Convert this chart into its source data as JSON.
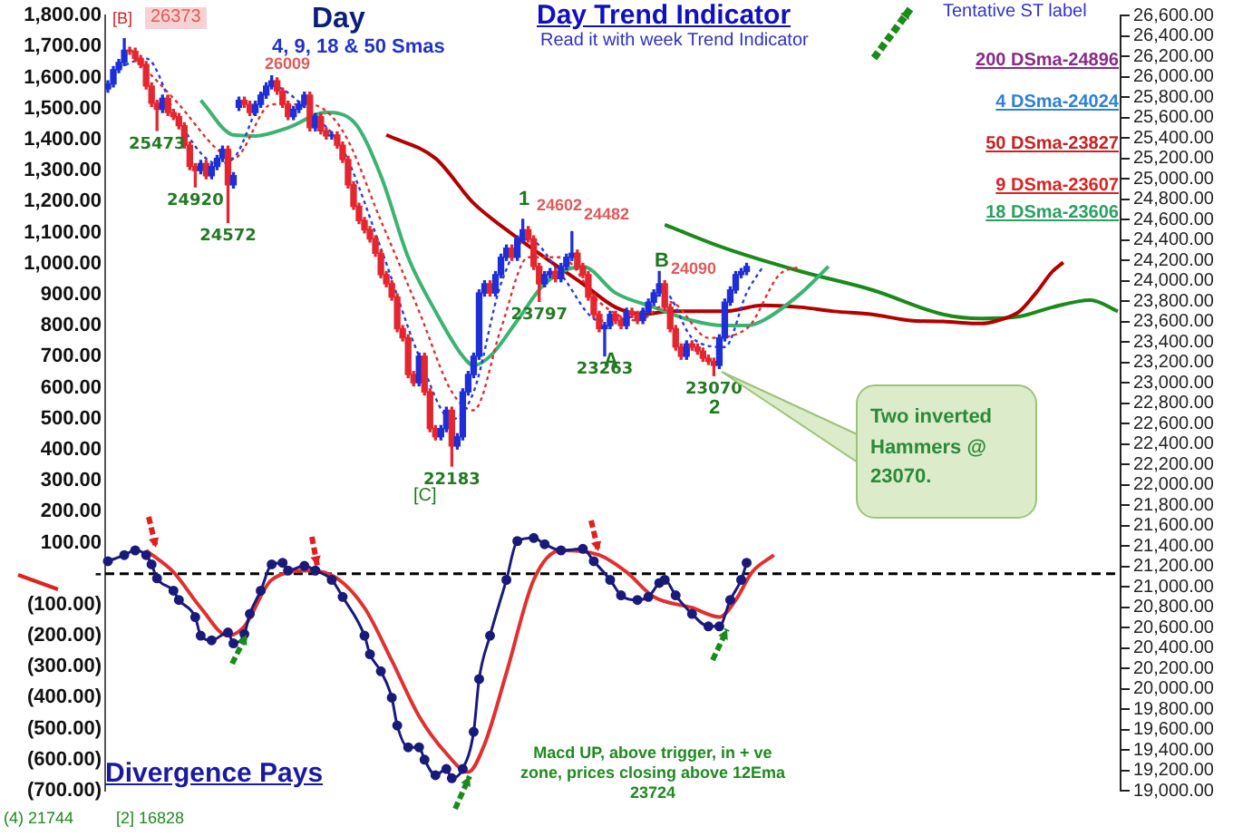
{
  "chart_data": {
    "type": "candlestick",
    "title": "Day Trend Indicator",
    "subtitle": "Read it with week Trend Indicator",
    "categories": [
      null,
      null,
      null,
      null,
      null,
      null,
      null,
      null,
      null,
      null,
      null,
      null,
      null,
      null,
      null,
      null,
      null,
      null,
      null,
      null,
      null,
      null,
      null,
      null,
      null,
      null,
      null,
      null,
      null,
      null,
      null,
      null,
      null,
      null,
      null,
      null,
      null,
      null,
      null,
      null,
      null,
      null,
      null,
      null,
      null,
      null,
      null,
      null,
      null,
      null,
      null,
      null,
      null,
      null,
      null,
      null,
      null,
      null,
      null,
      null,
      null,
      null,
      null,
      null,
      null,
      null,
      null,
      null,
      null,
      null,
      null,
      null,
      null,
      null,
      null,
      null,
      null,
      null,
      null,
      null,
      null,
      null,
      null,
      null,
      null,
      null,
      null,
      null,
      null,
      null,
      null,
      null,
      null,
      null,
      null,
      null,
      null,
      null,
      null,
      null,
      null,
      null,
      null,
      null,
      null,
      null,
      null,
      null,
      null,
      null,
      null,
      null,
      null,
      null,
      null,
      null,
      null,
      null,
      null,
      null,
      null,
      null,
      null,
      null,
      null,
      null,
      null,
      null,
      null,
      null,
      null,
      null,
      null,
      null,
      null,
      null,
      null,
      null,
      null,
      null,
      null,
      null,
      null,
      null,
      null,
      null,
      null,
      null,
      null,
      null,
      null,
      null,
      null,
      null,
      null,
      null,
      null,
      null,
      null,
      null,
      null,
      null,
      null,
      null,
      null,
      null,
      null,
      null,
      null,
      null,
      null,
      null,
      null,
      null,
      null,
      null,
      null,
      null,
      null,
      null,
      null,
      null,
      null,
      null,
      null,
      null
    ],
    "ohlc": [
      [
        25880,
        25960,
        25850,
        25930
      ],
      [
        25930,
        26100,
        25900,
        26070
      ],
      [
        26070,
        26170,
        26040,
        26140
      ],
      [
        26140,
        26373,
        26110,
        26260
      ],
      [
        26260,
        26290,
        26220,
        26250
      ],
      [
        26250,
        26280,
        26150,
        26180
      ],
      [
        26180,
        26210,
        26090,
        26120
      ],
      [
        26120,
        26150,
        25880,
        25910
      ],
      [
        25910,
        25940,
        25710,
        25740
      ],
      [
        25740,
        25770,
        25473,
        25680
      ],
      [
        25680,
        25820,
        25650,
        25790
      ],
      [
        25790,
        25820,
        25620,
        25650
      ],
      [
        25650,
        25680,
        25580,
        25610
      ],
      [
        25610,
        25640,
        25490,
        25520
      ],
      [
        25520,
        25550,
        25300,
        25330
      ],
      [
        25330,
        25360,
        25090,
        25120
      ],
      [
        25120,
        25150,
        24920,
        25080
      ],
      [
        25080,
        25180,
        25050,
        25150
      ],
      [
        25150,
        25180,
        25000,
        25030
      ],
      [
        25030,
        25150,
        25000,
        25120
      ],
      [
        25120,
        25230,
        25090,
        25200
      ],
      [
        25200,
        25320,
        25170,
        25290
      ],
      [
        25290,
        25320,
        24572,
        24940
      ],
      [
        24940,
        25060,
        24910,
        25030
      ],
      [
        25700,
        25800,
        25670,
        25770
      ],
      [
        25770,
        25800,
        25700,
        25730
      ],
      [
        25730,
        25760,
        25620,
        25650
      ],
      [
        25650,
        25760,
        25620,
        25730
      ],
      [
        25730,
        25850,
        25700,
        25820
      ],
      [
        25820,
        25940,
        25790,
        25910
      ],
      [
        25910,
        26009,
        25880,
        25960
      ],
      [
        25960,
        25990,
        25830,
        25860
      ],
      [
        25860,
        25890,
        25700,
        25730
      ],
      [
        25730,
        25760,
        25580,
        25610
      ],
      [
        25610,
        25710,
        25580,
        25680
      ],
      [
        25680,
        25760,
        25650,
        25730
      ],
      [
        25730,
        25850,
        25700,
        25820
      ],
      [
        25820,
        25850,
        25470,
        25500
      ],
      [
        25500,
        25640,
        25470,
        25610
      ],
      [
        25610,
        25640,
        25440,
        25470
      ],
      [
        25470,
        25500,
        25390,
        25420
      ],
      [
        25420,
        25460,
        25390,
        25430
      ],
      [
        25430,
        25460,
        25300,
        25330
      ],
      [
        25330,
        25360,
        25160,
        25190
      ],
      [
        25190,
        25220,
        24910,
        24940
      ],
      [
        24940,
        24970,
        24700,
        24730
      ],
      [
        24730,
        24760,
        24560,
        24590
      ],
      [
        24590,
        24620,
        24470,
        24500
      ],
      [
        24500,
        24530,
        24380,
        24410
      ],
      [
        24410,
        24440,
        24240,
        24270
      ],
      [
        24270,
        24300,
        24030,
        24060
      ],
      [
        24060,
        24090,
        23940,
        23970
      ],
      [
        23970,
        24000,
        23810,
        23840
      ],
      [
        23840,
        23870,
        23500,
        23530
      ],
      [
        23530,
        23560,
        23410,
        23440
      ],
      [
        23440,
        23470,
        23050,
        23080
      ],
      [
        23080,
        23110,
        22970,
        23000
      ],
      [
        23000,
        23290,
        22970,
        23260
      ],
      [
        23260,
        23290,
        22880,
        22910
      ],
      [
        22910,
        22940,
        22520,
        22550
      ],
      [
        22550,
        22580,
        22440,
        22470
      ],
      [
        22470,
        22580,
        22440,
        22550
      ],
      [
        22550,
        22760,
        22520,
        22730
      ],
      [
        22730,
        22760,
        22183,
        22380
      ],
      [
        22380,
        22500,
        22350,
        22470
      ],
      [
        22470,
        22940,
        22440,
        22910
      ],
      [
        22910,
        23110,
        22880,
        23080
      ],
      [
        23080,
        23290,
        23050,
        23260
      ],
      [
        23260,
        23910,
        23230,
        23880
      ],
      [
        23880,
        24000,
        23850,
        23970
      ],
      [
        23970,
        24000,
        23850,
        23880
      ],
      [
        23880,
        24090,
        23850,
        24060
      ],
      [
        24060,
        24260,
        24030,
        24230
      ],
      [
        24230,
        24350,
        24200,
        24320
      ],
      [
        24320,
        24350,
        24200,
        24230
      ],
      [
        24230,
        24440,
        24200,
        24410
      ],
      [
        24410,
        24602,
        24380,
        24500
      ],
      [
        24500,
        24530,
        24380,
        24410
      ],
      [
        24410,
        24440,
        24110,
        24140
      ],
      [
        24140,
        24170,
        23797,
        23970
      ],
      [
        23970,
        24090,
        23940,
        24060
      ],
      [
        24060,
        24120,
        24030,
        24090
      ],
      [
        24090,
        24120,
        23990,
        24020
      ],
      [
        24020,
        24170,
        23990,
        24140
      ],
      [
        24140,
        24260,
        24110,
        24230
      ],
      [
        24230,
        24482,
        24200,
        24270
      ],
      [
        24270,
        24300,
        24110,
        24140
      ],
      [
        24140,
        24170,
        24030,
        24060
      ],
      [
        24060,
        24090,
        23810,
        23840
      ],
      [
        23840,
        23870,
        23640,
        23670
      ],
      [
        23670,
        23700,
        23500,
        23530
      ],
      [
        23530,
        23590,
        23263,
        23560
      ],
      [
        23560,
        23700,
        23530,
        23670
      ],
      [
        23670,
        23700,
        23580,
        23610
      ],
      [
        23610,
        23640,
        23530,
        23560
      ],
      [
        23560,
        23730,
        23530,
        23700
      ],
      [
        23700,
        23730,
        23640,
        23670
      ],
      [
        23670,
        23700,
        23580,
        23610
      ],
      [
        23610,
        23730,
        23580,
        23700
      ],
      [
        23700,
        23820,
        23670,
        23790
      ],
      [
        23790,
        23910,
        23760,
        23880
      ],
      [
        23880,
        24090,
        23850,
        23970
      ],
      [
        23970,
        24000,
        23710,
        23740
      ],
      [
        23740,
        23770,
        23500,
        23530
      ],
      [
        23530,
        23560,
        23320,
        23350
      ],
      [
        23350,
        23380,
        23230,
        23260
      ],
      [
        23260,
        23410,
        23230,
        23380
      ],
      [
        23380,
        23410,
        23320,
        23350
      ],
      [
        23350,
        23380,
        23280,
        23310
      ],
      [
        23310,
        23340,
        23210,
        23240
      ],
      [
        23240,
        23270,
        23180,
        23210
      ],
      [
        23210,
        23240,
        23070,
        23170
      ],
      [
        23170,
        23470,
        23140,
        23440
      ],
      [
        23440,
        23820,
        23410,
        23790
      ],
      [
        23790,
        23940,
        23760,
        23910
      ],
      [
        23910,
        24090,
        23880,
        24060
      ],
      [
        24060,
        24120,
        24030,
        24090
      ],
      [
        24090,
        24170,
        24060,
        24140
      ],
      null,
      null,
      null,
      null,
      null,
      null,
      null,
      null,
      null,
      null,
      null,
      null,
      null,
      null,
      null,
      null,
      null,
      null,
      null,
      null,
      null,
      null,
      null,
      null,
      null,
      null,
      null,
      null,
      null,
      null,
      null,
      null,
      null,
      null,
      null,
      null,
      null,
      null,
      null,
      null,
      null,
      null,
      null,
      null,
      null,
      null,
      null,
      null,
      null,
      null,
      null,
      null,
      null,
      null,
      null,
      null,
      null,
      null,
      null,
      null,
      null,
      null,
      null,
      null,
      null,
      null,
      null,
      null
    ],
    "series": [
      {
        "type": "line",
        "color": "#2a3fd8",
        "line_style": "dotted",
        "values": [
          null,
          null,
          26090,
          null,
          null,
          null,
          null,
          26180,
          null,
          null,
          null,
          null,
          null,
          25560,
          null,
          null,
          null,
          null,
          null,
          null,
          25150,
          null,
          null,
          25200,
          null,
          null,
          null,
          null,
          null,
          null,
          25910,
          null,
          null,
          null,
          null,
          null,
          null,
          25650,
          null,
          null,
          null,
          null,
          null,
          25290,
          null,
          null,
          null,
          null,
          null,
          null,
          24320,
          null,
          null,
          null,
          null,
          null,
          null,
          23260,
          null,
          null,
          null,
          null,
          null,
          22640,
          null,
          null,
          null,
          22910,
          null,
          null,
          null,
          null,
          23970,
          null,
          null,
          null,
          null,
          24410,
          null,
          null,
          null,
          null,
          null,
          24060,
          null,
          null,
          null,
          null,
          null,
          null,
          23610,
          null,
          null,
          null,
          null,
          null,
          null,
          23670,
          null,
          null,
          null,
          null,
          23880,
          null,
          null,
          null,
          null,
          23440,
          null,
          null,
          null,
          null,
          null,
          23350,
          null,
          null,
          null,
          23880,
          null,
          null,
          24140,
          null,
          null,
          null,
          null,
          null,
          null,
          null,
          null,
          null,
          null,
          null,
          null,
          null,
          null,
          null,
          null,
          null,
          null,
          null,
          null,
          null,
          null,
          null,
          null,
          null,
          null,
          null,
          null,
          null,
          null,
          null,
          null,
          null,
          null,
          null,
          null,
          null,
          null,
          null,
          null,
          null,
          null,
          null,
          null,
          null,
          null,
          null,
          null,
          null,
          null,
          null,
          null,
          null,
          null,
          null,
          null,
          null,
          null,
          null,
          null,
          null,
          null,
          null,
          null,
          null
        ]
      },
      {
        "type": "line",
        "color": "#e03030",
        "line_style": "dotted",
        "values": [
          null,
          null,
          null,
          null,
          null,
          26180,
          null,
          null,
          null,
          null,
          null,
          null,
          null,
          25730,
          null,
          null,
          null,
          null,
          null,
          null,
          25290,
          null,
          null,
          25200,
          null,
          null,
          null,
          null,
          null,
          null,
          25730,
          null,
          null,
          null,
          null,
          null,
          null,
          25730,
          null,
          null,
          null,
          null,
          null,
          25470,
          null,
          null,
          null,
          null,
          null,
          null,
          24590,
          null,
          null,
          null,
          null,
          null,
          null,
          23700,
          null,
          null,
          null,
          null,
          null,
          22910,
          null,
          null,
          null,
          22730,
          null,
          null,
          null,
          null,
          23530,
          null,
          null,
          null,
          null,
          24230,
          null,
          null,
          null,
          null,
          null,
          24230,
          null,
          null,
          null,
          null,
          null,
          null,
          23790,
          null,
          null,
          null,
          null,
          null,
          null,
          23610,
          null,
          null,
          null,
          null,
          null,
          23790,
          null,
          null,
          null,
          null,
          null,
          null,
          23440,
          null,
          null,
          null,
          null,
          null,
          null,
          23530,
          null,
          null,
          null,
          null,
          null,
          24060,
          null,
          null,
          null,
          24140,
          null,
          null,
          null,
          null,
          null,
          null,
          null,
          null,
          null,
          null,
          null,
          null,
          null,
          null,
          null,
          null,
          null,
          null,
          null,
          null,
          null,
          null,
          null,
          null,
          null,
          null,
          null,
          null,
          null,
          null,
          null,
          null,
          null,
          null,
          null,
          null,
          null,
          null,
          null,
          null,
          null,
          null,
          null,
          null,
          null,
          null,
          null,
          null,
          null,
          null,
          null,
          null,
          null,
          null,
          null,
          null,
          null,
          null
        ]
      },
      {
        "type": "line",
        "color": "#3cb371",
        "line_style": "solid",
        "values": [
          null,
          null,
          null,
          null,
          null,
          null,
          null,
          null,
          null,
          null,
          null,
          null,
          null,
          null,
          null,
          null,
          null,
          25770,
          null,
          null,
          null,
          null,
          null,
          25430,
          null,
          null,
          null,
          25420,
          null,
          null,
          null,
          null,
          null,
          25500,
          null,
          null,
          null,
          null,
          null,
          null,
          25650,
          null,
          null,
          null,
          null,
          25560,
          null,
          null,
          null,
          null,
          25030,
          null,
          null,
          null,
          null,
          24230,
          null,
          null,
          null,
          null,
          23700,
          null,
          null,
          null,
          null,
          23260,
          null,
          23170,
          null,
          null,
          23260,
          null,
          null,
          null,
          null,
          23610,
          null,
          null,
          null,
          null,
          23970,
          null,
          null,
          null,
          null,
          null,
          null,
          24140,
          null,
          null,
          null,
          null,
          null,
          23880,
          null,
          null,
          null,
          null,
          null,
          null,
          23740,
          null,
          null,
          null,
          null,
          null,
          null,
          23610,
          null,
          null,
          null,
          null,
          null,
          23560,
          null,
          null,
          null,
          23560,
          null,
          null,
          23610,
          null,
          null,
          null,
          null,
          null,
          null,
          23880,
          null,
          null,
          null,
          null,
          24140,
          null,
          null,
          null,
          null,
          null,
          null,
          null,
          null,
          null,
          null,
          null,
          null,
          null,
          null,
          null,
          null,
          null,
          null,
          null,
          null,
          null,
          null,
          null,
          null,
          null,
          null,
          null,
          null,
          null,
          null,
          null,
          null,
          null,
          null,
          null,
          null,
          null,
          null,
          null,
          null,
          null,
          null,
          null,
          null,
          null,
          null,
          null,
          null,
          null,
          null,
          null,
          null,
          null
        ]
      },
      {
        "type": "line",
        "color": "#b40000",
        "line_style": "solid",
        "values": [
          null,
          null,
          null,
          null,
          null,
          null,
          null,
          null,
          null,
          null,
          null,
          null,
          null,
          null,
          null,
          null,
          null,
          null,
          null,
          null,
          null,
          null,
          null,
          null,
          null,
          null,
          null,
          null,
          null,
          null,
          null,
          null,
          null,
          null,
          null,
          null,
          null,
          null,
          null,
          null,
          null,
          null,
          null,
          null,
          null,
          null,
          null,
          null,
          null,
          null,
          null,
          25430,
          null,
          null,
          null,
          null,
          null,
          null,
          null,
          null,
          25200,
          null,
          null,
          null,
          null,
          null,
          null,
          24760,
          null,
          null,
          null,
          null,
          null,
          24500,
          null,
          null,
          null,
          null,
          null,
          null,
          24230,
          null,
          null,
          null,
          null,
          null,
          null,
          23970,
          null,
          null,
          null,
          null,
          null,
          23740,
          null,
          null,
          null,
          null,
          23670,
          null,
          null,
          null,
          null,
          23700,
          null,
          null,
          null,
          null,
          null,
          null,
          null,
          null,
          null,
          23700,
          null,
          null,
          null,
          null,
          null,
          null,
          23760,
          null,
          null,
          null,
          null,
          null,
          null,
          23740,
          null,
          null,
          null,
          null,
          null,
          23700,
          null,
          null,
          null,
          null,
          null,
          null,
          23670,
          null,
          null,
          null,
          null,
          null,
          null,
          23610,
          null,
          null,
          null,
          null,
          null,
          23600,
          null,
          null,
          null,
          null,
          null,
          null,
          23580,
          null,
          null,
          23610,
          null,
          null,
          null,
          23700,
          null,
          null,
          23880,
          null,
          null,
          24090,
          null,
          24180,
          null,
          null,
          null,
          null,
          null,
          null,
          null,
          null,
          null,
          null
        ]
      },
      {
        "type": "line",
        "color": "#1a8a1a",
        "line_style": "solid",
        "values": [
          null,
          null,
          null,
          null,
          null,
          null,
          null,
          null,
          null,
          null,
          null,
          null,
          null,
          null,
          null,
          null,
          null,
          null,
          null,
          null,
          null,
          null,
          null,
          null,
          null,
          null,
          null,
          null,
          null,
          null,
          null,
          null,
          null,
          null,
          null,
          null,
          null,
          null,
          null,
          null,
          null,
          null,
          null,
          null,
          null,
          null,
          null,
          null,
          null,
          null,
          null,
          null,
          null,
          null,
          null,
          null,
          null,
          null,
          null,
          null,
          null,
          null,
          null,
          null,
          null,
          null,
          null,
          null,
          null,
          null,
          null,
          null,
          null,
          null,
          null,
          null,
          null,
          null,
          null,
          null,
          null,
          null,
          null,
          null,
          null,
          null,
          null,
          null,
          null,
          null,
          null,
          null,
          null,
          null,
          null,
          null,
          null,
          null,
          null,
          null,
          null,
          null,
          24550,
          null,
          null,
          null,
          null,
          null,
          null,
          null,
          null,
          null,
          null,
          24320,
          null,
          null,
          null,
          null,
          null,
          null,
          null,
          null,
          null,
          null,
          null,
          null,
          null,
          24090,
          null,
          null,
          null,
          null,
          null,
          null,
          null,
          null,
          null,
          null,
          null,
          null,
          23910,
          null,
          null,
          null,
          null,
          null,
          null,
          null,
          null,
          null,
          null,
          null,
          null,
          23670,
          null,
          null,
          null,
          null,
          null,
          null,
          23630,
          null,
          null,
          null,
          null,
          null,
          null,
          23650,
          null,
          null,
          null,
          null,
          null,
          23740,
          null,
          null,
          null,
          null,
          null,
          null,
          23810,
          null,
          null,
          null,
          null,
          23700
        ]
      },
      {
        "type": "line",
        "axis": "y2",
        "color": "#1a1a7a",
        "line_style": "solid",
        "marker": "circle",
        "values": [
          40,
          null,
          null,
          60,
          null,
          75,
          null,
          60,
          30,
          -15,
          null,
          null,
          -55,
          -85,
          null,
          null,
          -140,
          -200,
          null,
          -215,
          null,
          null,
          -190,
          -225,
          null,
          -195,
          -130,
          null,
          -55,
          null,
          30,
          null,
          35,
          10,
          null,
          null,
          25,
          null,
          10,
          null,
          null,
          -20,
          null,
          -75,
          null,
          null,
          null,
          -200,
          -260,
          null,
          -315,
          null,
          -400,
          -490,
          null,
          -560,
          null,
          -560,
          -600,
          null,
          -650,
          null,
          -630,
          -660,
          null,
          -630,
          null,
          -510,
          -340,
          null,
          -200,
          null,
          null,
          -20,
          null,
          105,
          null,
          null,
          115,
          null,
          95,
          null,
          null,
          75,
          null,
          null,
          null,
          80,
          null,
          40,
          null,
          null,
          -20,
          null,
          -70,
          null,
          null,
          -85,
          null,
          -75,
          null,
          -30,
          -20,
          null,
          -70,
          null,
          null,
          -130,
          null,
          null,
          -170,
          null,
          -170,
          null,
          -85,
          null,
          -20,
          35,
          null,
          null,
          null,
          null,
          null,
          null,
          null,
          null,
          null,
          null,
          null,
          null,
          null,
          null,
          null,
          null,
          null,
          null,
          null,
          null,
          null,
          null,
          null,
          null,
          null,
          null,
          null,
          null,
          null,
          null,
          null,
          null,
          null,
          null,
          null,
          null,
          null,
          null,
          null,
          null,
          null,
          null,
          null,
          null,
          null,
          null,
          null,
          null,
          null,
          null,
          null,
          null,
          null,
          null,
          null,
          null,
          null,
          null,
          null,
          null,
          null,
          null,
          null,
          null,
          null,
          null,
          null,
          null
        ]
      },
      {
        "type": "line",
        "axis": "y2",
        "color": "#e03030",
        "line_style": "solid",
        "values": [
          null,
          null,
          null,
          null,
          null,
          null,
          null,
          75,
          null,
          null,
          null,
          null,
          5,
          null,
          null,
          null,
          null,
          -110,
          null,
          null,
          null,
          null,
          -200,
          null,
          null,
          -170,
          null,
          null,
          null,
          null,
          -20,
          null,
          null,
          null,
          null,
          null,
          null,
          10,
          null,
          null,
          null,
          null,
          -15,
          null,
          null,
          null,
          null,
          -110,
          null,
          null,
          null,
          null,
          -280,
          null,
          null,
          null,
          null,
          -460,
          null,
          null,
          null,
          null,
          -580,
          null,
          null,
          null,
          -640,
          null,
          null,
          -550,
          null,
          null,
          null,
          -320,
          null,
          null,
          null,
          null,
          -20,
          null,
          null,
          null,
          null,
          75,
          null,
          null,
          null,
          null,
          null,
          null,
          60,
          null,
          null,
          null,
          null,
          5,
          null,
          null,
          null,
          null,
          -75,
          null,
          null,
          null,
          null,
          null,
          null,
          -110,
          null,
          null,
          null,
          null,
          -140,
          null,
          null,
          -85,
          null,
          null,
          5,
          null,
          null,
          null,
          60,
          null,
          null,
          null,
          null,
          null,
          null,
          null,
          null,
          null,
          null,
          null,
          null,
          null,
          null,
          null,
          null,
          null,
          null,
          null,
          null,
          null,
          null,
          null,
          null,
          null,
          null,
          null,
          null,
          null,
          null,
          null,
          null,
          null,
          null,
          null,
          null,
          null,
          null,
          null,
          null,
          null,
          null,
          null,
          null,
          null,
          null,
          null,
          null,
          null,
          null,
          null,
          null,
          null,
          null,
          null,
          null,
          null,
          null,
          null,
          null,
          null,
          null,
          null
        ]
      }
    ],
    "ylim": [
      19000,
      26600
    ],
    "yticks": [
      {
        "value": 19000,
        "label": "19,000.00"
      },
      {
        "value": 19200,
        "label": "19,200.00"
      },
      {
        "value": 19400,
        "label": "19,400.00"
      },
      {
        "value": 19600,
        "label": "19,600.00"
      },
      {
        "value": 19800,
        "label": "19,800.00"
      },
      {
        "value": 20000,
        "label": "20,000.00"
      },
      {
        "value": 20200,
        "label": "20,200.00"
      },
      {
        "value": 20400,
        "label": "20,400.00"
      },
      {
        "value": 20600,
        "label": "20,600.00"
      },
      {
        "value": 20800,
        "label": "20,800.00"
      },
      {
        "value": 21000,
        "label": "21,000.00"
      },
      {
        "value": 21200,
        "label": "21,200.00"
      },
      {
        "value": 21400,
        "label": "21,400.00"
      },
      {
        "value": 21600,
        "label": "21,600.00"
      },
      {
        "value": 21800,
        "label": "21,800.00"
      },
      {
        "value": 22000,
        "label": "22,000.00"
      },
      {
        "value": 22200,
        "label": "22,200.00"
      },
      {
        "value": 22400,
        "label": "22,400.00"
      },
      {
        "value": 22600,
        "label": "22,600.00"
      },
      {
        "value": 22800,
        "label": "22,800.00"
      },
      {
        "value": 23000,
        "label": "23,000.00"
      },
      {
        "value": 23200,
        "label": "23,200.00"
      },
      {
        "value": 23400,
        "label": "23,400.00"
      },
      {
        "value": 23600,
        "label": "23,600.00"
      },
      {
        "value": 23800,
        "label": "23,800.00"
      },
      {
        "value": 24000,
        "label": "24,000.00"
      },
      {
        "value": 24200,
        "label": "24,200.00"
      },
      {
        "value": 24400,
        "label": "24,400.00"
      },
      {
        "value": 24600,
        "label": "24,600.00"
      },
      {
        "value": 24800,
        "label": "24,800.00"
      },
      {
        "value": 25000,
        "label": "25,000.00"
      },
      {
        "value": 25200,
        "label": "25,200.00"
      },
      {
        "value": 25400,
        "label": "25,400.00"
      },
      {
        "value": 25600,
        "label": "25,600.00"
      },
      {
        "value": 25800,
        "label": "25,800.00"
      },
      {
        "value": 26000,
        "label": "26,000.00"
      },
      {
        "value": 26200,
        "label": "26,200.00"
      },
      {
        "value": 26400,
        "label": "26,400.00"
      },
      {
        "value": 26600,
        "label": "26,600.00"
      }
    ],
    "y2lim": [
      -700,
      1800
    ],
    "y2ticks": [
      {
        "value": -700,
        "label": "(700.00)"
      },
      {
        "value": -600,
        "label": "(600.00)"
      },
      {
        "value": -500,
        "label": "(500.00)"
      },
      {
        "value": -400,
        "label": "(400.00)"
      },
      {
        "value": -300,
        "label": "(300.00)"
      },
      {
        "value": -200,
        "label": "(200.00)"
      },
      {
        "value": -100,
        "label": "(100.00)"
      },
      {
        "value": 0,
        "label": "-"
      },
      {
        "value": 100,
        "label": "100.00"
      },
      {
        "value": 200,
        "label": "200.00"
      },
      {
        "value": 300,
        "label": "300.00"
      },
      {
        "value": 400,
        "label": "400.00"
      },
      {
        "value": 500,
        "label": "500.00"
      },
      {
        "value": 600,
        "label": "600.00"
      },
      {
        "value": 700,
        "label": "700.00"
      },
      {
        "value": 800,
        "label": "800.00"
      },
      {
        "value": 900,
        "label": "900.00"
      },
      {
        "value": 1000,
        "label": "1,000.00"
      },
      {
        "value": 1100,
        "label": "1,100.00"
      },
      {
        "value": 1200,
        "label": "1,200.00"
      },
      {
        "value": 1300,
        "label": "1,300.00"
      },
      {
        "value": 1400,
        "label": "1,400.00"
      },
      {
        "value": 1500,
        "label": "1,500.00"
      },
      {
        "value": 1600,
        "label": "1,600.00"
      },
      {
        "value": 1700,
        "label": "1,700.00"
      },
      {
        "value": 1800,
        "label": "1,800.00"
      }
    ],
    "ref_lines": [
      {
        "axis": "y2",
        "value": 0,
        "color": "#000000",
        "line_style": "dashed"
      }
    ],
    "annotations": [
      "Day",
      "4, 9, 18 & 50 Smas",
      "[B]",
      "[C]",
      "1",
      "B",
      "A",
      "2",
      "Tentative  ST label",
      "200 DSma-24896",
      "4 DSma-24024",
      "50 DSma-23827",
      "9 DSma-23607",
      "18 DSma-23606",
      "Two inverted Hammers @ 23070.",
      "Macd UP, above trigger, in + ve zone, prices closing above 12Ema 23724",
      "Divergence Pays",
      "(4) 21744",
      "[2] 16828",
      "26373",
      "26009",
      "24602",
      "24482",
      "24090",
      {
        "text": "25473",
        "y": 25473
      },
      {
        "text": "24920",
        "y": 24920
      },
      {
        "text": "24572",
        "y": 24572
      },
      {
        "text": "22183",
        "y": 22183
      },
      {
        "text": "23797",
        "y": 23797
      },
      {
        "text": "23263",
        "y": 23263
      },
      {
        "text": "23070",
        "y": 23070
      }
    ],
    "grid": false,
    "legend": false
  }
}
